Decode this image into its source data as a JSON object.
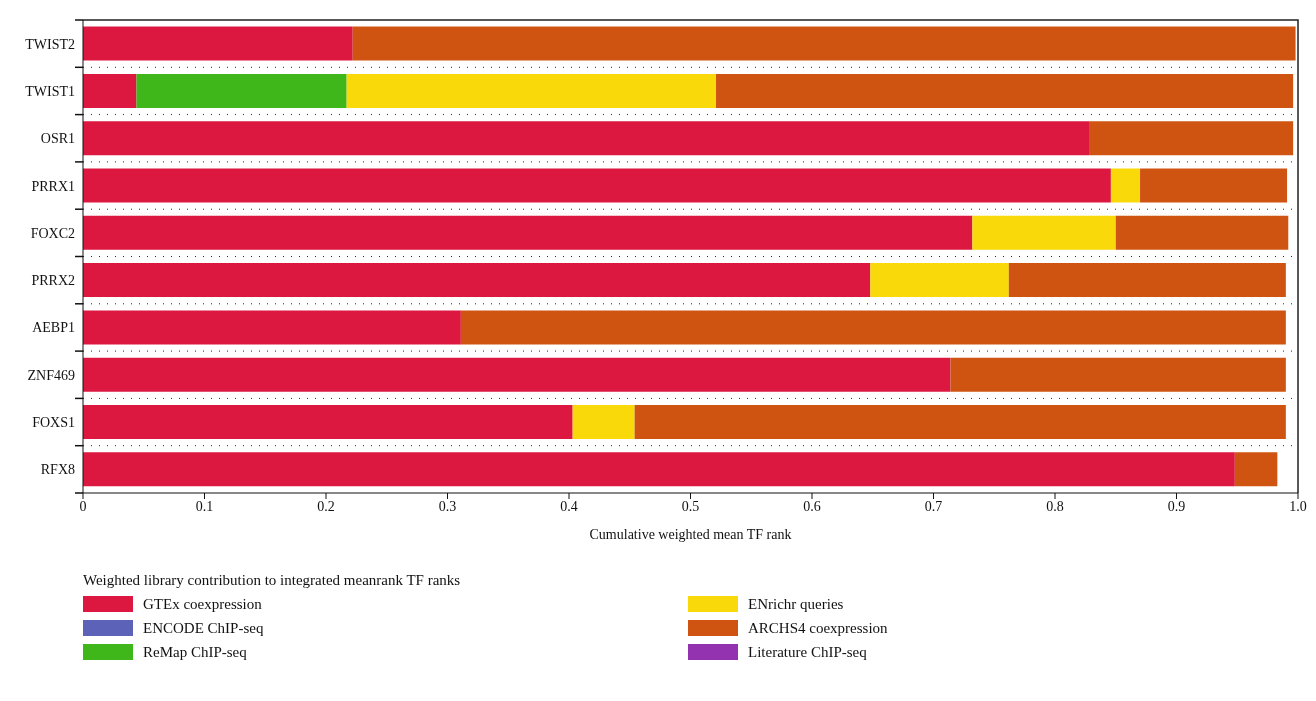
{
  "chart_data": {
    "type": "bar",
    "orientation": "horizontal",
    "stacked": true,
    "categories": [
      "TWIST2",
      "TWIST1",
      "OSR1",
      "PRRX1",
      "FOXC2",
      "PRRX2",
      "AEBP1",
      "ZNF469",
      "FOXS1",
      "RFX8"
    ],
    "xlabel": "Cumulative weighted mean TF rank",
    "legend_title": "Weighted library contribution to integrated meanrank TF ranks",
    "xlim": [
      0,
      1.0
    ],
    "xticks": [
      0,
      0.1,
      0.2,
      0.3,
      0.4,
      0.5,
      0.6,
      0.7,
      0.8,
      0.9,
      {
        "value": 1.0,
        "label": "1.0"
      }
    ],
    "grid": "y",
    "legend": "bottom",
    "series": [
      {
        "name": "GTEx coexpression",
        "color": "#dd1840",
        "values": [
          0.222,
          0.044,
          0.828,
          0.846,
          0.732,
          0.648,
          0.311,
          0.714,
          0.403,
          0.948
        ]
      },
      {
        "name": "ENCODE ChIP-seq",
        "color": "#5b62b8",
        "values": [
          0,
          0,
          0,
          0,
          0,
          0,
          0,
          0,
          0,
          0
        ]
      },
      {
        "name": "ReMap ChIP-seq",
        "color": "#3fb71b",
        "values": [
          0,
          0.173,
          0,
          0,
          0,
          0,
          0,
          0,
          0,
          0
        ]
      },
      {
        "name": "ENrichr queries",
        "color": "#f9d90a",
        "values": [
          0,
          0.304,
          0,
          0.024,
          0.118,
          0.114,
          0,
          0,
          0.051,
          0
        ]
      },
      {
        "name": "ARCHS4 coexpression",
        "color": "#cf5412",
        "values": [
          0.776,
          0.475,
          0.168,
          0.121,
          0.142,
          0.228,
          0.679,
          0.276,
          0.536,
          0.035
        ]
      },
      {
        "name": "Literature ChIP-seq",
        "color": "#9333b0",
        "values": [
          0,
          0,
          0,
          0,
          0,
          0,
          0,
          0,
          0,
          0
        ]
      }
    ]
  }
}
